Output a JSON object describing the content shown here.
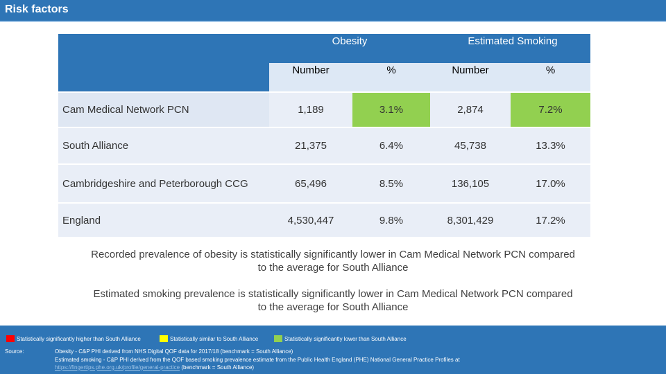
{
  "header": {
    "title": "Risk factors"
  },
  "table": {
    "groups": {
      "obesity": "Obesity",
      "smoking": "Estimated Smoking"
    },
    "subheaders": [
      "Number",
      "%",
      "Number",
      "%"
    ],
    "rows": [
      {
        "label": "Cam Medical Network PCN",
        "obesity_number": "1,189",
        "obesity_pct": "3.1%",
        "smoking_number": "2,874",
        "smoking_pct": "7.2%"
      },
      {
        "label": "South Alliance",
        "obesity_number": "21,375",
        "obesity_pct": "6.4%",
        "smoking_number": "45,738",
        "smoking_pct": "13.3%"
      },
      {
        "label": "Cambridgeshire and Peterborough CCG",
        "obesity_number": "65,496",
        "obesity_pct": "8.5%",
        "smoking_number": "136,105",
        "smoking_pct": "17.0%"
      },
      {
        "label": "England",
        "obesity_number": "4,530,447",
        "obesity_pct": "9.8%",
        "smoking_number": "8,301,429",
        "smoking_pct": "17.2%"
      }
    ]
  },
  "notes": {
    "obesity": "Recorded prevalence of obesity is statistically significantly lower in Cam Medical Network PCN compared to the average for South Alliance",
    "smoking": "Estimated smoking prevalence is statistically significantly lower in Cam Medical Network PCN compared to the average for South Alliance"
  },
  "legend": {
    "higher": "Statistically significantly higher than South Alliance",
    "similar": "Statistically similar to South Alliance",
    "lower": "Statistically significantly lower than South Alliance"
  },
  "source": {
    "label": "Source:",
    "line1": "Obesity - C&P PHI derived from NHS Digital QOF data for 2017/18 (benchmark = South Alliance)",
    "line2": "Estimated smoking - C&P PHI derived from the QOF based smoking prevalence estimate from the Public Health England (PHE) National General Practice Profiles at",
    "link": "https://fingertips.phe.org.uk/profile/general-practice",
    "line3_suffix": " (benchmark = South Alliance)"
  },
  "colors": {
    "accent": "#2e75b6",
    "header_row": "#dde8f5",
    "row_light": "#e9eef7",
    "row_alt": "#dfe7f3",
    "green": "#92d050",
    "red": "#ff0000",
    "yellow": "#ffff00"
  }
}
